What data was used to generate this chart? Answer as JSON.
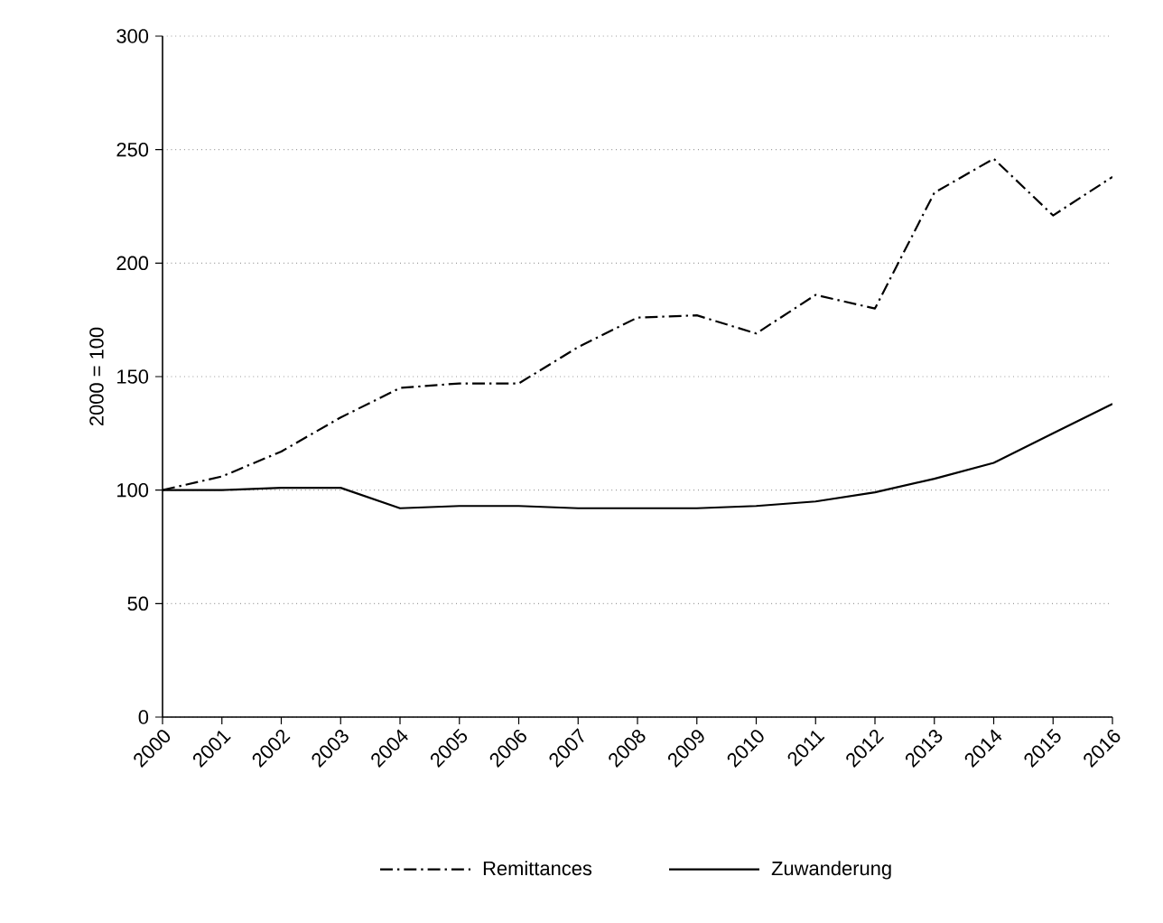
{
  "chart_data": {
    "type": "line",
    "ylabel": "2000 = 100",
    "categories": [
      "2000",
      "2001",
      "2002",
      "2003",
      "2004",
      "2005",
      "2006",
      "2007",
      "2008",
      "2009",
      "2010",
      "2011",
      "2012",
      "2013",
      "2014",
      "2015",
      "2016"
    ],
    "series": [
      {
        "name": "Remittances",
        "color": "#000000",
        "line_style": "dashdot",
        "values": [
          100,
          106,
          117,
          132,
          145,
          147,
          147,
          163,
          176,
          177,
          169,
          186,
          180,
          231,
          246,
          221,
          238
        ]
      },
      {
        "name": "Zuwanderung",
        "color": "#000000",
        "line_style": "solid",
        "values": [
          100,
          100,
          101,
          101,
          92,
          93,
          93,
          92,
          92,
          92,
          93,
          95,
          99,
          105,
          112,
          125,
          138
        ]
      }
    ],
    "ylim": [
      0,
      300
    ],
    "yticks": [
      0,
      50,
      100,
      150,
      200,
      250,
      300
    ],
    "grid": "y",
    "legend": "bottom",
    "marker": "none"
  }
}
